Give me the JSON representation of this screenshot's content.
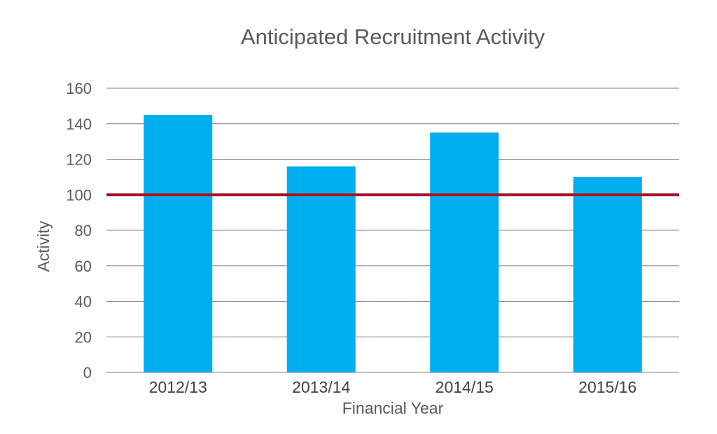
{
  "chart_data": {
    "type": "bar",
    "title": "Anticipated Recruitment Activity",
    "xlabel": "Financial Year",
    "ylabel": "Activity",
    "categories": [
      "2012/13",
      "2013/14",
      "2014/15",
      "2015/16"
    ],
    "values": [
      145,
      116,
      135,
      110
    ],
    "ylim": [
      0,
      160
    ],
    "yticks": [
      0,
      20,
      40,
      60,
      80,
      100,
      120,
      140,
      160
    ],
    "reference_line": {
      "value": 100,
      "color": "#a0182a"
    },
    "bar_color": "#00adef",
    "grid": true,
    "legend": "none"
  }
}
